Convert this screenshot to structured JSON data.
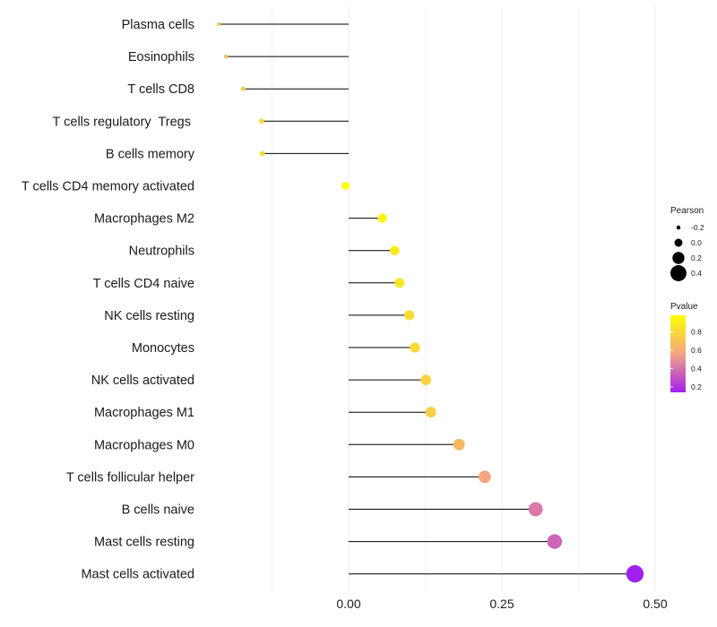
{
  "chart_data": {
    "type": "lollipop",
    "ylabels": [
      "Plasma cells",
      "Eosinophils",
      "T cells CD8",
      "T cells regulatory  Tregs ",
      "B cells memory",
      "T cells CD4 memory activated",
      "Macrophages M2",
      "Neutrophils",
      "T cells CD4 naive",
      "NK cells resting",
      "Monocytes",
      "NK cells activated",
      "Macrophages M1",
      "Macrophages M0",
      "T cells follicular helper",
      "B cells naive",
      "Mast cells resting",
      "Mast cells activated"
    ],
    "pearson": [
      -0.212,
      -0.2,
      -0.172,
      -0.142,
      -0.141,
      -0.005,
      0.055,
      0.075,
      0.083,
      0.099,
      0.108,
      0.126,
      0.134,
      0.18,
      0.222,
      0.305,
      0.336,
      0.467
    ],
    "pvalue": [
      0.7,
      0.66,
      0.72,
      0.8,
      0.8,
      0.98,
      0.92,
      0.88,
      0.86,
      0.82,
      0.8,
      0.78,
      0.74,
      0.66,
      0.56,
      0.42,
      0.36,
      0.14
    ],
    "xticks": [
      0.0,
      0.25,
      0.5
    ],
    "xtick_labels": [
      "0.00",
      "0.25",
      "0.50"
    ],
    "xlim": [
      -0.25,
      0.5
    ],
    "legend_size": {
      "title": "Pearson",
      "labels": [
        "-0.2",
        "0.0",
        "0.2",
        "0.4"
      ],
      "values": [
        -0.2,
        0.0,
        0.2,
        0.4
      ]
    },
    "legend_color": {
      "title": "Pvalue",
      "labels": [
        "0.8",
        "0.6",
        "0.4",
        "0.2"
      ],
      "values": [
        0.8,
        0.6,
        0.4,
        0.2
      ],
      "range": [
        0.14,
        0.98
      ],
      "low_color": "#a020f0",
      "mid_color": "#f4a582",
      "high_color": "#ffff00"
    },
    "segment_color": "#000000",
    "grid_color": "#ebebeb"
  }
}
